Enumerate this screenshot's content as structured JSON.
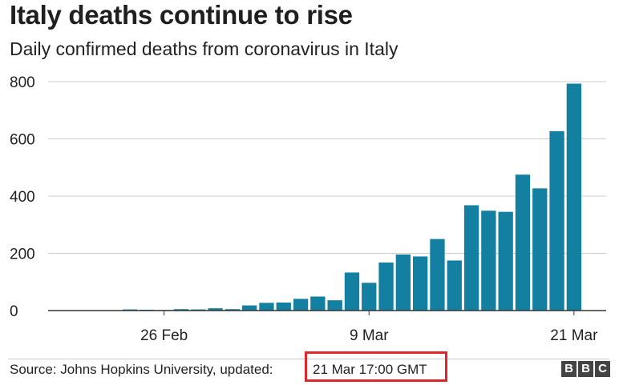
{
  "header": {
    "title": "Italy deaths continue to rise",
    "subtitle": "Daily confirmed deaths from coronavirus in Italy"
  },
  "footer": {
    "source": "Source: Johns Hopkins University, updated:",
    "updated": "21 Mar 17:00 GMT",
    "logo_letters": [
      "B",
      "B",
      "C"
    ]
  },
  "colors": {
    "bar": "#1380a1",
    "grid": "#cccccc",
    "highlight_box": "#e0262b",
    "logo": "#444444"
  },
  "chart_data": {
    "type": "bar",
    "title": "Italy deaths continue to rise",
    "subtitle": "Daily confirmed deaths from coronavirus in Italy",
    "xlabel": "",
    "ylabel": "",
    "ylim": [
      0,
      800
    ],
    "yticks": [
      0,
      200,
      400,
      600,
      800
    ],
    "grid": true,
    "legend": "none",
    "categories": [
      "19 Feb",
      "20 Feb",
      "21 Feb",
      "22 Feb",
      "23 Feb",
      "24 Feb",
      "25 Feb",
      "26 Feb",
      "27 Feb",
      "28 Feb",
      "29 Feb",
      "1 Mar",
      "2 Mar",
      "3 Mar",
      "4 Mar",
      "5 Mar",
      "6 Mar",
      "7 Mar",
      "8 Mar",
      "9 Mar",
      "10 Mar",
      "11 Mar",
      "12 Mar",
      "13 Mar",
      "14 Mar",
      "15 Mar",
      "16 Mar",
      "17 Mar",
      "18 Mar",
      "19 Mar",
      "20 Mar",
      "21 Mar"
    ],
    "values": [
      0,
      0,
      0,
      1,
      1,
      4,
      3,
      2,
      5,
      4,
      8,
      5,
      18,
      27,
      28,
      41,
      49,
      36,
      133,
      97,
      168,
      196,
      189,
      250,
      175,
      368,
      349,
      345,
      475,
      427,
      627,
      793
    ],
    "xtick_labels": [
      {
        "category": "26 Feb",
        "label": "26 Feb"
      },
      {
        "category": "9 Mar",
        "label": "9 Mar"
      },
      {
        "category": "21 Mar",
        "label": "21 Mar"
      }
    ]
  }
}
